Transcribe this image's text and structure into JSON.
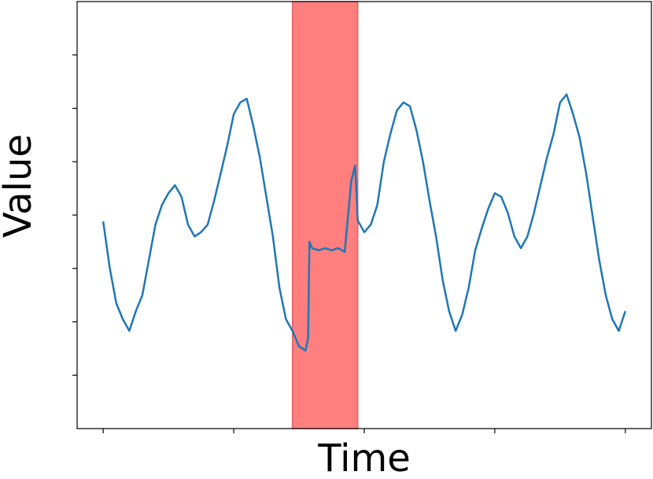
{
  "chart_data": {
    "type": "line",
    "x_label": "Time",
    "y_label": "Value",
    "xlim": [
      -20,
      420
    ],
    "ylim": [
      -4,
      4
    ],
    "xticks": [
      0,
      100,
      200,
      300,
      400
    ],
    "yticks": [
      -3,
      -2,
      -1,
      0,
      1,
      2,
      3
    ],
    "highlight": {
      "start": 145,
      "end": 195,
      "color": "#ff7f7f"
    },
    "x": [
      0,
      5,
      10,
      15,
      20,
      25,
      30,
      35,
      40,
      45,
      50,
      55,
      60,
      65,
      70,
      75,
      80,
      85,
      90,
      95,
      100,
      105,
      110,
      115,
      120,
      125,
      130,
      135,
      140,
      145,
      150,
      155,
      157,
      158,
      160,
      165,
      170,
      175,
      180,
      185,
      190,
      193,
      195,
      200,
      205,
      210,
      215,
      220,
      225,
      230,
      235,
      240,
      245,
      250,
      255,
      260,
      265,
      270,
      275,
      280,
      285,
      290,
      295,
      300,
      305,
      310,
      315,
      320,
      325,
      330,
      335,
      340,
      345,
      350,
      355,
      360,
      365,
      370,
      375,
      380,
      385,
      390,
      395,
      400
    ],
    "series": [
      {
        "color": "#1f77b4",
        "values": [
          -0.12,
          -0.99,
          -1.65,
          -1.95,
          -2.17,
          -1.8,
          -1.5,
          -0.84,
          -0.18,
          0.19,
          0.41,
          0.56,
          0.34,
          -0.18,
          -0.4,
          -0.32,
          -0.18,
          0.27,
          0.78,
          1.3,
          1.89,
          2.11,
          2.18,
          1.67,
          1.08,
          0.34,
          -0.4,
          -1.36,
          -1.95,
          -2.17,
          -2.46,
          -2.54,
          -2.3,
          -0.5,
          -0.62,
          -0.66,
          -0.62,
          -0.66,
          -0.62,
          -0.69,
          0.63,
          0.93,
          -0.1,
          -0.32,
          -0.18,
          0.19,
          1.0,
          1.52,
          1.96,
          2.11,
          2.04,
          1.59,
          1.0,
          0.27,
          -0.4,
          -1.21,
          -1.8,
          -2.17,
          -1.87,
          -1.36,
          -0.66,
          -0.25,
          0.12,
          0.41,
          0.34,
          0.04,
          -0.4,
          -0.62,
          -0.4,
          0.04,
          0.56,
          1.08,
          1.52,
          2.11,
          2.26,
          1.89,
          1.45,
          0.78,
          -0.03,
          -0.84,
          -1.5,
          -1.95,
          -2.17,
          -1.8
        ]
      }
    ]
  }
}
